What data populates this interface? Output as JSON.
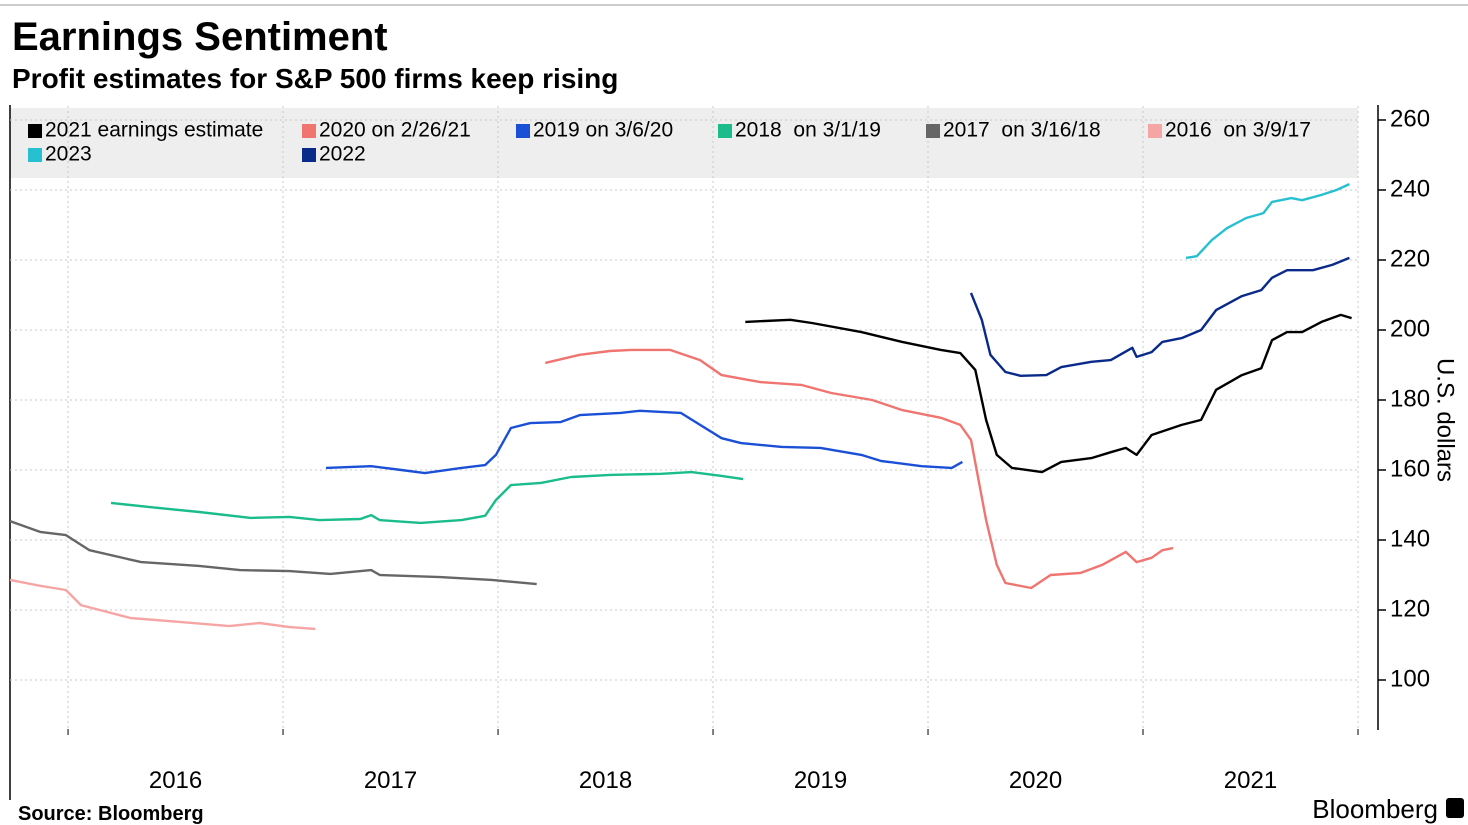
{
  "chart_data": {
    "type": "line",
    "title": "Earnings Sentiment",
    "subtitle": "Profit estimates for S&P 500 firms keep rising",
    "ylabel": "U.S. dollars",
    "source": "Source: Bloomberg",
    "brand": "Bloomberg",
    "xlim": [
      2015.73,
      2022.0
    ],
    "xticks": [
      {
        "value": 2016.5,
        "label": "2016"
      },
      {
        "value": 2017.5,
        "label": "2017"
      },
      {
        "value": 2018.5,
        "label": "2018"
      },
      {
        "value": 2019.5,
        "label": "2019"
      },
      {
        "value": 2020.5,
        "label": "2020"
      },
      {
        "value": 2021.5,
        "label": "2021"
      }
    ],
    "xgrid": [
      2016,
      2017,
      2018,
      2019,
      2020,
      2021,
      2022
    ],
    "ylim": [
      86,
      264
    ],
    "yticks": [
      100,
      120,
      140,
      160,
      180,
      200,
      220,
      240,
      260
    ],
    "grid": true,
    "series": [
      {
        "name": "2021 earnings estimate",
        "color": "#000000",
        "x": [
          2019.15,
          2019.36,
          2019.46,
          2019.69,
          2019.88,
          2020.06,
          2020.15,
          2020.22,
          2020.27,
          2020.32,
          2020.39,
          2020.53,
          2020.62,
          2020.76,
          2020.85,
          2020.92,
          2020.97,
          2021.04,
          2021.18,
          2021.27,
          2021.34,
          2021.46,
          2021.55,
          2021.6,
          2021.67,
          2021.74,
          2021.83,
          2021.92,
          2021.97
        ],
        "values": [
          202.3,
          202.9,
          202,
          199.4,
          196.6,
          194.3,
          193.4,
          188.6,
          174.3,
          164.3,
          160.6,
          159.4,
          162.3,
          163.4,
          165.1,
          166.3,
          164.3,
          170,
          172.9,
          174.3,
          182.9,
          187.1,
          189.1,
          197.1,
          199.4,
          199.4,
          202.3,
          204.3,
          203.4
        ]
      },
      {
        "name": "2020 on 2/26/21",
        "color": "#f07470",
        "x": [
          2018.22,
          2018.38,
          2018.52,
          2018.62,
          2018.8,
          2018.94,
          2019.04,
          2019.22,
          2019.41,
          2019.55,
          2019.74,
          2019.88,
          2020.06,
          2020.15,
          2020.2,
          2020.27,
          2020.32,
          2020.36,
          2020.48,
          2020.57,
          2020.71,
          2020.81,
          2020.92,
          2020.97,
          2021.04,
          2021.09,
          2021.14
        ],
        "values": [
          190.6,
          192.9,
          194,
          194.3,
          194.3,
          191.4,
          187.1,
          185.1,
          184.3,
          182,
          180,
          177.1,
          174.9,
          172.9,
          168.6,
          145.7,
          132.9,
          127.7,
          126.3,
          130,
          130.6,
          132.9,
          136.6,
          133.7,
          134.9,
          137.1,
          137.7
        ]
      },
      {
        "name": "2019 on 3/6/20",
        "color": "#1a4fd6",
        "x": [
          2017.2,
          2017.41,
          2017.55,
          2017.66,
          2017.83,
          2017.94,
          2017.99,
          2018.06,
          2018.15,
          2018.29,
          2018.38,
          2018.57,
          2018.66,
          2018.85,
          2018.94,
          2019.04,
          2019.13,
          2019.32,
          2019.5,
          2019.69,
          2019.78,
          2019.97,
          2020.11,
          2020.16
        ],
        "values": [
          160.6,
          161.1,
          160,
          159.1,
          160.6,
          161.4,
          164.3,
          172,
          173.4,
          173.7,
          175.7,
          176.3,
          176.9,
          176.3,
          172.9,
          169.1,
          167.7,
          166.6,
          166.3,
          164.3,
          162.6,
          161.1,
          160.6,
          162.3
        ]
      },
      {
        "name": "2018  on 3/1/19",
        "color": "#1abc8c",
        "x": [
          2016.2,
          2016.38,
          2016.61,
          2016.85,
          2017.03,
          2017.17,
          2017.36,
          2017.41,
          2017.45,
          2017.64,
          2017.83,
          2017.94,
          2017.99,
          2018.06,
          2018.2,
          2018.34,
          2018.52,
          2018.76,
          2018.9,
          2019.04,
          2019.14
        ],
        "values": [
          150.6,
          149.4,
          148,
          146.3,
          146.6,
          145.7,
          146,
          147.1,
          145.7,
          144.9,
          145.7,
          146.9,
          151.4,
          155.7,
          156.3,
          158,
          158.6,
          158.9,
          159.4,
          158.3,
          157.4
        ]
      },
      {
        "name": "2017  on 3/16/18",
        "color": "#666666",
        "x": [
          2015.73,
          2015.87,
          2015.99,
          2016.1,
          2016.34,
          2016.61,
          2016.8,
          2017.03,
          2017.22,
          2017.41,
          2017.45,
          2017.73,
          2017.97,
          2018.18
        ],
        "values": [
          145.4,
          142.3,
          141.4,
          137.1,
          133.7,
          132.6,
          131.4,
          131.1,
          130.3,
          131.4,
          130,
          129.4,
          128.6,
          127.4
        ]
      },
      {
        "name": "2016  on 3/9/17",
        "color": "#f6a5a5",
        "x": [
          2015.73,
          2015.87,
          2015.99,
          2016.06,
          2016.29,
          2016.52,
          2016.75,
          2016.89,
          2017.03,
          2017.15
        ],
        "values": [
          128.6,
          126.9,
          125.7,
          121.4,
          117.7,
          116.6,
          115.4,
          116.3,
          115.1,
          114.6
        ]
      },
      {
        "name": "2023",
        "color": "#27c0d0",
        "x": [
          2021.2,
          2021.25,
          2021.32,
          2021.39,
          2021.48,
          2021.56,
          2021.6,
          2021.69,
          2021.74,
          2021.83,
          2021.9,
          2021.96
        ],
        "values": [
          220.6,
          221.1,
          225.7,
          229.1,
          232,
          233.4,
          236.6,
          237.7,
          237.1,
          238.6,
          240,
          241.7
        ]
      },
      {
        "name": "2022",
        "color": "#0a2a8a",
        "x": [
          2020.2,
          2020.25,
          2020.29,
          2020.36,
          2020.43,
          2020.55,
          2020.62,
          2020.76,
          2020.85,
          2020.95,
          2020.97,
          2021.04,
          2021.09,
          2021.18,
          2021.27,
          2021.34,
          2021.46,
          2021.55,
          2021.6,
          2021.67,
          2021.79,
          2021.88,
          2021.96
        ],
        "values": [
          210.6,
          202.9,
          192.9,
          188,
          186.9,
          187.1,
          189.4,
          190.9,
          191.4,
          194.9,
          192.3,
          193.7,
          196.6,
          197.7,
          200,
          205.7,
          209.7,
          211.4,
          214.9,
          217.1,
          217.1,
          218.6,
          220.6
        ]
      }
    ]
  }
}
